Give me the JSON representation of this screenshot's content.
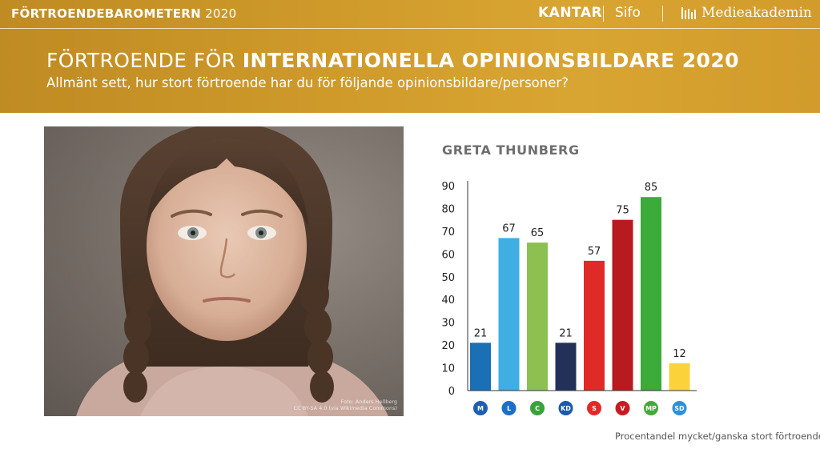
{
  "header": {
    "brand_bold": "FÖRTROENDEBAROMETERN",
    "brand_year": "2020",
    "kantar": "KANTAR",
    "sifo": "Sifo",
    "medieakademin": "Medieakademin",
    "title_light": "FÖRTROENDE FÖR ",
    "title_bold": "INTERNATIONELLA OPINIONSBILDARE 2020",
    "subtitle": "Allmänt sett, hur stort förtroende har du för följande opinionsbildare/personer?"
  },
  "photo": {
    "credit_line1": "Foto: Anders Hellberg",
    "credit_line2": "CC BY-SA 4.0 (via Wikimedia Commons)"
  },
  "chart_data": {
    "type": "bar",
    "title": "GRETA THUNBERG",
    "categories": [
      "M",
      "L",
      "C",
      "KD",
      "S",
      "V",
      "MP",
      "SD"
    ],
    "values": [
      21,
      67,
      65,
      21,
      57,
      75,
      85,
      12
    ],
    "colors": [
      "#1b6fb5",
      "#3eaee3",
      "#8cc152",
      "#233158",
      "#e02a27",
      "#b81b1f",
      "#3bab3a",
      "#fcd23b"
    ],
    "icon_colors": [
      "#1d5fb0",
      "#1d6fc6",
      "#3aa23d",
      "#1b5aa8",
      "#e02a27",
      "#c71b21",
      "#45a83a",
      "#2f8fd9"
    ],
    "ylim": [
      0,
      90
    ],
    "yticks": [
      0,
      10,
      20,
      30,
      40,
      50,
      60,
      70,
      80,
      90
    ],
    "grid": false,
    "legend": "none"
  },
  "footer": {
    "note": "Procentandel mycket/ganska stort förtroende"
  }
}
